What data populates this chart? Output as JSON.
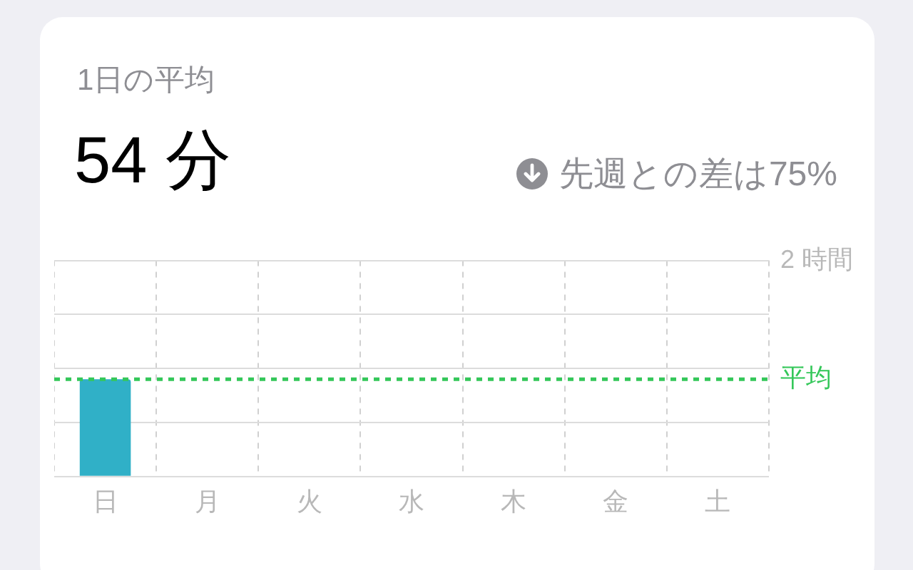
{
  "chart_data": {
    "type": "bar",
    "title": "1日の平均",
    "subtitle": "54 分",
    "annotations": [
      "先週との差は75%"
    ],
    "categories": [
      "日",
      "月",
      "火",
      "水",
      "木",
      "金",
      "土"
    ],
    "series": [
      {
        "color": "#30b0c7",
        "values": [
          0.9,
          0,
          0,
          0,
          0,
          0,
          0
        ]
      }
    ],
    "ylim": [
      0,
      2
    ],
    "yticks": [
      0,
      {
        "value": 0.5,
        "label": null
      },
      {
        "value": 1,
        "label": null
      },
      {
        "value": 1.5,
        "label": null
      },
      {
        "value": 2,
        "label": "2 時間"
      }
    ],
    "grid": true,
    "legend": false,
    "ref_lines": [
      {
        "axis": "y",
        "value": 0.9,
        "label": "平均",
        "color": "#34c759",
        "line_style": "dashed"
      }
    ]
  }
}
